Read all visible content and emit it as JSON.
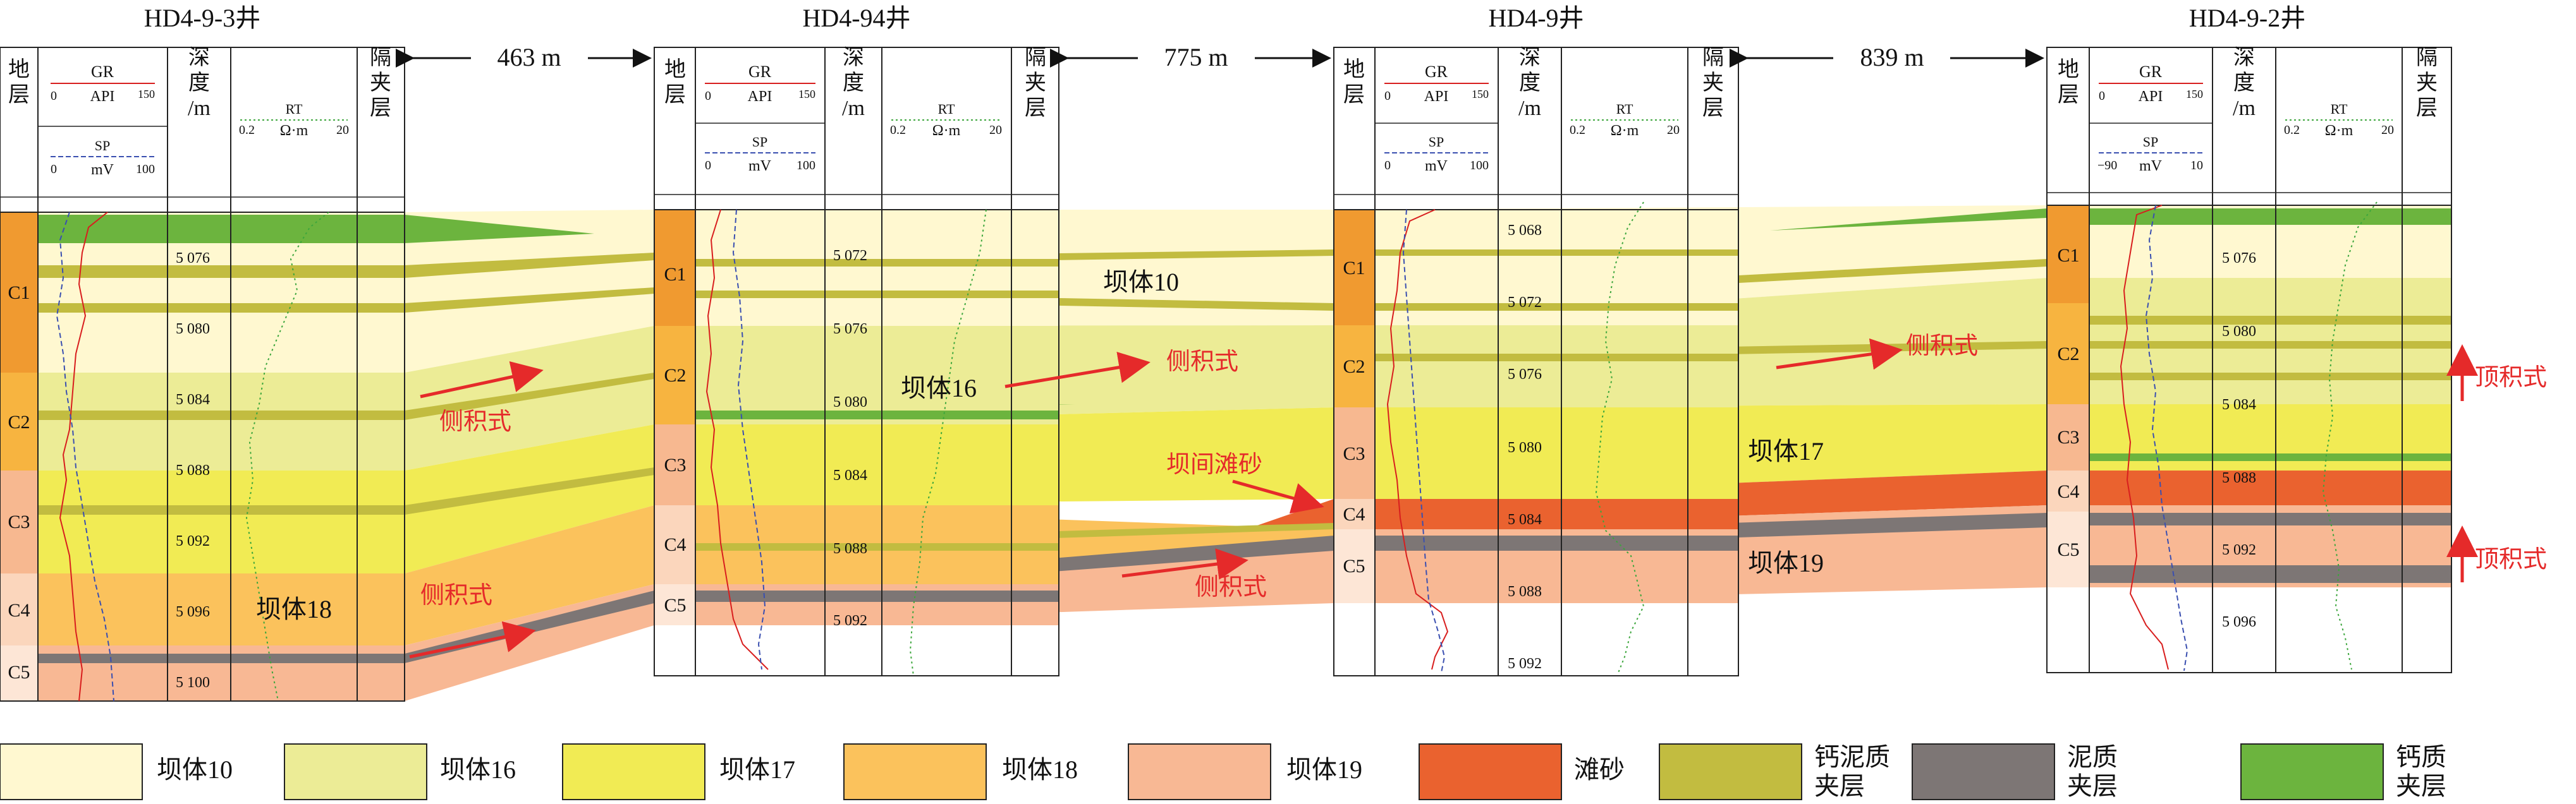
{
  "wells": [
    {
      "name": "HD4-9-3井",
      "header": {
        "strat": "地层",
        "depth": "深度/m",
        "interlayer": "隔夹层",
        "gr": "GR",
        "gr_scale": [
          "0",
          "API",
          "150"
        ],
        "sp": "SP",
        "sp_scale": [
          "0",
          "mV",
          "100"
        ],
        "rt": "RT",
        "rt_scale": [
          "0.2",
          "Ω·m",
          "20"
        ]
      },
      "zones": [
        "C1",
        "C2",
        "C3",
        "C4",
        "C5"
      ],
      "depths": [
        "5 076",
        "5 080",
        "5 084",
        "5 088",
        "5 092",
        "5 096",
        "5 100"
      ]
    },
    {
      "name": "HD4-94井",
      "header": {
        "strat": "地层",
        "depth": "深度/m",
        "interlayer": "隔夹层",
        "gr": "GR",
        "gr_scale": [
          "0",
          "API",
          "150"
        ],
        "sp": "SP",
        "sp_scale": [
          "0",
          "mV",
          "100"
        ],
        "rt": "RT",
        "rt_scale": [
          "0.2",
          "Ω·m",
          "20"
        ]
      },
      "zones": [
        "C1",
        "C2",
        "C3",
        "C4",
        "C5"
      ],
      "depths": [
        "5 072",
        "5 076",
        "5 080",
        "5 084",
        "5 088",
        "5 092"
      ]
    },
    {
      "name": "HD4-9井",
      "header": {
        "strat": "地层",
        "depth": "深度/m",
        "interlayer": "隔夹层",
        "gr": "GR",
        "gr_scale": [
          "0",
          "API",
          "150"
        ],
        "sp": "SP",
        "sp_scale": [
          "0",
          "mV",
          "100"
        ],
        "rt": "RT",
        "rt_scale": [
          "0.2",
          "Ω·m",
          "20"
        ]
      },
      "zones": [
        "C1",
        "C2",
        "C3",
        "C4",
        "C5"
      ],
      "depths": [
        "5 068",
        "5 072",
        "5 076",
        "5 080",
        "5 084",
        "5 088",
        "5 092"
      ]
    },
    {
      "name": "HD4-9-2井",
      "header": {
        "strat": "地层",
        "depth": "深度/m",
        "interlayer": "隔夹层",
        "gr": "GR",
        "gr_scale": [
          "0",
          "API",
          "150"
        ],
        "sp": "SP",
        "sp_scale": [
          "−90",
          "mV",
          "10"
        ],
        "rt": "RT",
        "rt_scale": [
          "0.2",
          "Ω·m",
          "20"
        ]
      },
      "zones": [
        "C1",
        "C2",
        "C3",
        "C4",
        "C5"
      ],
      "depths": [
        "5 076",
        "5 080",
        "5 084",
        "5 088",
        "5 092",
        "5 096"
      ]
    }
  ],
  "distances": [
    "463 m",
    "775 m",
    "839 m"
  ],
  "annotations": {
    "body10": "坝体10",
    "body16": "坝体16",
    "body17": "坝体17",
    "body18": "坝体18",
    "body19": "坝体19",
    "lateral": "侧积式",
    "interbar": "坝间滩砂",
    "topacc": "顶积式"
  },
  "legend": [
    {
      "label": "坝体10",
      "color": "#fff8d0"
    },
    {
      "label": "坝体16",
      "color": "#ecec96"
    },
    {
      "label": "坝体17",
      "color": "#f1eb54"
    },
    {
      "label": "坝体18",
      "color": "#fbc25c"
    },
    {
      "label": "坝体19",
      "color": "#f8b894"
    },
    {
      "label": "滩砂",
      "color": "#ea622f"
    },
    {
      "label": "钙泥质夹层",
      "color": "#c2bc40"
    },
    {
      "label": "泥质夹层",
      "color": "#7d7675"
    },
    {
      "label": "钙质夹层",
      "color": "#6cb43e"
    }
  ],
  "colors": {
    "zone_C1": "#f09a30",
    "zone_C2": "#f7b440",
    "zone_C3": "#f7b890",
    "zone_C4": "#fbd6bc",
    "zone_C5": "#fde6d6",
    "boundary": "#ee5a2a",
    "arrow": "#e52a2a",
    "gr_curve": "#d81e1e",
    "sp_curve": "#3a4fb0",
    "rt_curve": "#3ca63c"
  }
}
